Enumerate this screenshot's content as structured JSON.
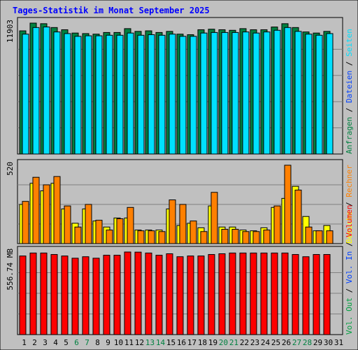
{
  "title": "Tages-Statistik im Monat September 2025",
  "colors": {
    "background": "#c0c0c0",
    "grid": "#808080",
    "title": "#0000ff",
    "anfragen": "#008040",
    "dateien": "#0040ff",
    "seiten": "#00e0ff",
    "besuche": "#ffff00",
    "rechner": "#ff8000",
    "volumen": "#ff0000",
    "vol_in": "#0040ff",
    "vol_out": "#00a040",
    "sep": "#000000",
    "weekend_label": "#008040"
  },
  "right_labels": {
    "top": [
      {
        "text": "Anfragen",
        "color_key": "anfragen"
      },
      {
        "text": "/",
        "color_key": "sep"
      },
      {
        "text": "Dateien",
        "color_key": "dateien"
      },
      {
        "text": "/",
        "color_key": "sep"
      },
      {
        "text": "Seiten",
        "color_key": "seiten"
      }
    ],
    "middle": [
      {
        "text": "Besuche",
        "color_key": "besuche"
      },
      {
        "text": "/",
        "color_key": "sep"
      },
      {
        "text": "Rechner",
        "color_key": "rechner"
      }
    ],
    "bottom": [
      {
        "text": "Vol. Out",
        "color_key": "vol_out"
      },
      {
        "text": "/",
        "color_key": "sep"
      },
      {
        "text": "Vol. In",
        "color_key": "vol_in"
      },
      {
        "text": "/",
        "color_key": "sep"
      },
      {
        "text": "Volumen",
        "color_key": "volumen"
      }
    ]
  },
  "chart_data": [
    {
      "type": "bar",
      "panel": "requests",
      "y_max_label": "11903",
      "ylim": [
        0,
        11903
      ],
      "categories": [
        "1",
        "2",
        "3",
        "4",
        "5",
        "6",
        "7",
        "8",
        "9",
        "10",
        "11",
        "12",
        "13",
        "14",
        "15",
        "16",
        "17",
        "18",
        "19",
        "20",
        "21",
        "22",
        "23",
        "24",
        "25",
        "26",
        "27",
        "28",
        "29",
        "30",
        "31"
      ],
      "weekend_days": [
        "6",
        "7",
        "13",
        "14",
        "20",
        "21",
        "27",
        "28"
      ],
      "series": [
        {
          "name": "Anfragen",
          "values": [
            11200,
            11903,
            11850,
            11500,
            11300,
            11000,
            10950,
            10900,
            11050,
            11050,
            11400,
            11150,
            11200,
            11050,
            11150,
            10900,
            10850,
            11300,
            11350,
            11300,
            11250,
            11400,
            11300,
            11300,
            11550,
            11850,
            11500,
            11100,
            11000,
            11150,
            0
          ]
        },
        {
          "name": "Seiten",
          "values": [
            10900,
            11500,
            11550,
            11100,
            10950,
            10700,
            10750,
            10750,
            10800,
            10800,
            11000,
            10800,
            10850,
            10800,
            10900,
            10700,
            10700,
            11000,
            11050,
            11050,
            11050,
            11100,
            11000,
            11100,
            11250,
            11500,
            11150,
            10900,
            10800,
            10950,
            0
          ]
        }
      ]
    },
    {
      "type": "bar",
      "panel": "visits",
      "y_max_label": "520",
      "ylim": [
        0,
        520
      ],
      "categories": [
        "1",
        "2",
        "3",
        "4",
        "5",
        "6",
        "7",
        "8",
        "9",
        "10",
        "11",
        "12",
        "13",
        "14",
        "15",
        "16",
        "17",
        "18",
        "19",
        "20",
        "21",
        "22",
        "23",
        "24",
        "25",
        "26",
        "27",
        "28",
        "29",
        "30",
        "31"
      ],
      "series": [
        {
          "name": "Besuche",
          "values": [
            260,
            400,
            350,
            400,
            230,
            135,
            230,
            150,
            110,
            170,
            170,
            90,
            90,
            90,
            230,
            120,
            135,
            105,
            250,
            110,
            110,
            90,
            85,
            105,
            240,
            300,
            380,
            180,
            85,
            120,
            0
          ]
        },
        {
          "name": "Rechner",
          "values": [
            280,
            440,
            390,
            445,
            250,
            110,
            260,
            155,
            90,
            165,
            240,
            85,
            85,
            80,
            290,
            260,
            150,
            80,
            340,
            95,
            95,
            80,
            80,
            90,
            250,
            520,
            355,
            110,
            85,
            85,
            0
          ]
        }
      ]
    },
    {
      "type": "bar",
      "panel": "volume",
      "y_max_label": "556.74 MB",
      "ylim": [
        0,
        556.74
      ],
      "categories": [
        "1",
        "2",
        "3",
        "4",
        "5",
        "6",
        "7",
        "8",
        "9",
        "10",
        "11",
        "12",
        "13",
        "14",
        "15",
        "16",
        "17",
        "18",
        "19",
        "20",
        "21",
        "22",
        "23",
        "24",
        "25",
        "26",
        "27",
        "28",
        "29",
        "30",
        "31"
      ],
      "series": [
        {
          "name": "Volumen",
          "values": [
            530,
            550,
            550,
            540,
            530,
            515,
            525,
            515,
            535,
            535,
            556.74,
            556,
            550,
            535,
            545,
            525,
            530,
            530,
            540,
            545,
            550,
            550,
            550,
            550,
            550,
            550,
            540,
            525,
            540,
            540,
            0
          ]
        }
      ]
    }
  ]
}
